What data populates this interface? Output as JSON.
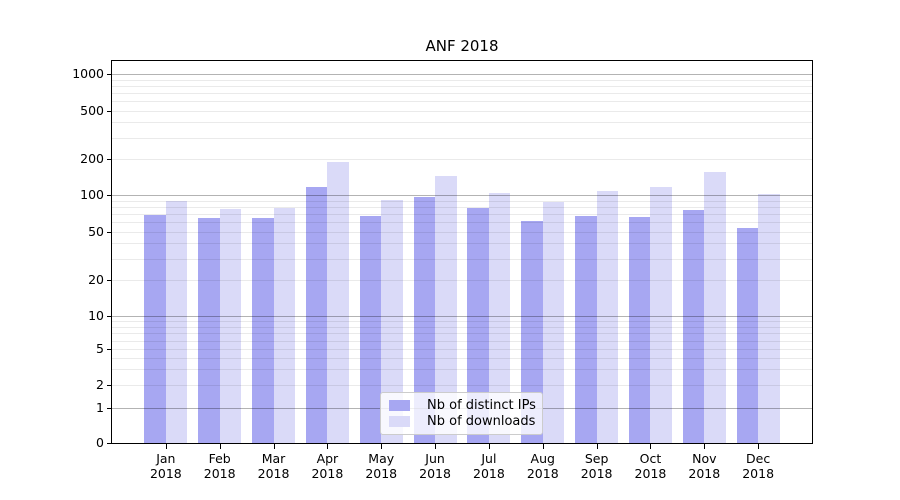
{
  "chart_data": {
    "type": "bar",
    "title": "ANF 2018",
    "categories": [
      "Jan 2018",
      "Feb 2018",
      "Mar 2018",
      "Apr 2018",
      "May 2018",
      "Jun 2018",
      "Jul 2018",
      "Aug 2018",
      "Sep 2018",
      "Oct 2018",
      "Nov 2018",
      "Dec 2018"
    ],
    "series": [
      {
        "name": "Nb of distinct IPs",
        "color": "#a7a7f2",
        "values": [
          69,
          65,
          65,
          117,
          67,
          96,
          78,
          61,
          68,
          66,
          76,
          54
        ]
      },
      {
        "name": "Nb of downloads",
        "color": "#dadaf8",
        "values": [
          90,
          77,
          79,
          187,
          92,
          145,
          105,
          88,
          109,
          117,
          156,
          102
        ]
      }
    ],
    "yscale": "symlog",
    "yticks": [
      0,
      1,
      2,
      5,
      10,
      20,
      50,
      100,
      200,
      500,
      1000
    ],
    "ylim": [
      0,
      1000
    ],
    "xlabel": "",
    "ylabel": "",
    "grid": "both",
    "legend_position": "lower center"
  }
}
